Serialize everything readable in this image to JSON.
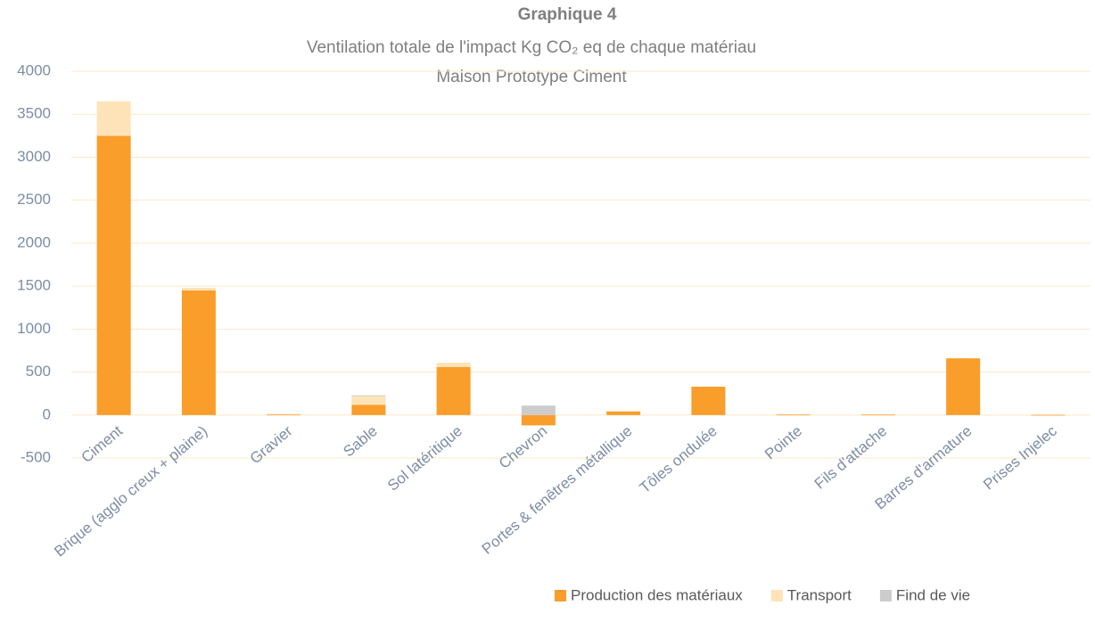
{
  "chart_data": {
    "type": "stacked_bar",
    "title": "Graphique 4",
    "subtitle": "Ventilation totale de l'impact Kg CO₂ eq de chaque matériau",
    "subtitle2": "Maison Prototype Ciment",
    "categories": [
      "Ciment",
      "Brique (agglo creux + plaine)",
      "Gravier",
      "Sable",
      "Sol latéritique",
      "Chevron",
      "Portes & fenêtres métallique",
      "Tôles ondulée",
      "Pointe",
      "Fils d'attache",
      "Barres d'armature",
      "Prises Injelec"
    ],
    "series": [
      {
        "name": "Production des matériaux",
        "color": "#f99d2b",
        "values": [
          3250,
          1450,
          5,
          120,
          560,
          -120,
          40,
          330,
          5,
          5,
          660,
          2
        ]
      },
      {
        "name": "Transport",
        "color": "#fde3b7",
        "values": [
          400,
          30,
          10,
          100,
          50,
          0,
          10,
          0,
          0,
          0,
          0,
          0
        ]
      },
      {
        "name": "Find de vie",
        "color": "#cccccc",
        "values": [
          0,
          0,
          0,
          10,
          0,
          110,
          0,
          0,
          0,
          0,
          0,
          0
        ]
      }
    ],
    "ylim": [
      -500,
      4000
    ],
    "yticks": [
      -500,
      0,
      500,
      1000,
      1500,
      2000,
      2500,
      3000,
      3500,
      4000
    ],
    "grid": true,
    "legend": "bottom-right"
  }
}
